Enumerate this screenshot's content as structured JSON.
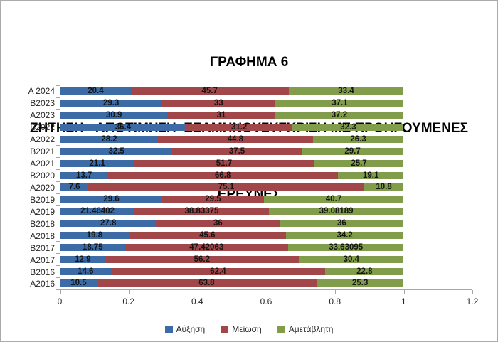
{
  "title": {
    "line1": "ΓΡΑΦΗΜΑ 6",
    "line2": "ΖΗΤΗΣΗ - ΑΠΟΤΙΜΗΣΗ  ΕΞΑΜΗΝΟΥΣΥΓΚΡΙΣΗ ΜΕ ΠΡΟΗΓΟΥΜΕΝΕΣ",
    "line3": "ΕΡΕΥΝΕΣ"
  },
  "chart_data": {
    "type": "bar",
    "orientation": "horizontal",
    "stacked": "100%",
    "title": "ΓΡΑΦΗΜΑ 6",
    "subtitle": "ΖΗΤΗΣΗ - ΑΠΟΤΙΜΗΣΗ  ΕΞΑΜΗΝΟΥΣΥΓΚΡΙΣΗ ΜΕ ΠΡΟΗΓΟΥΜΕΝΕΣ ΕΡΕΥΝΕΣ",
    "categories": [
      "A 2024",
      "B2023",
      "A2023",
      "B2022",
      "A2022",
      "B2021",
      "A2021",
      "B2020",
      "A2020",
      "B2019",
      "A2019",
      "B2018",
      "A2018",
      "B2017",
      "A2017",
      "B2016",
      "A2016"
    ],
    "series": [
      {
        "name": "Αύξηση",
        "color": "#3D6BA5",
        "values": [
          20.4,
          29.3,
          30.9,
          36.4,
          28.2,
          32.5,
          21.1,
          13.7,
          7.6,
          29.6,
          21.46402,
          27.8,
          19.8,
          18.75,
          12.9,
          14.6,
          10.5
        ]
      },
      {
        "name": "Μείωση",
        "color": "#A1474A",
        "values": [
          45.7,
          33,
          31,
          31.2,
          44.8,
          37.5,
          51.7,
          66.8,
          75.1,
          29.5,
          38.83375,
          36,
          45.6,
          47.42063,
          56.2,
          62.4,
          63.8
        ]
      },
      {
        "name": "Αμετάβλητη",
        "color": "#819C4B",
        "values": [
          33.4,
          37.1,
          37.2,
          32.3,
          26.3,
          29.7,
          25.7,
          19.1,
          10.8,
          40.7,
          39.08189,
          36,
          34.2,
          33.63095,
          30.4,
          22.8,
          25.3
        ]
      }
    ],
    "x_axis": {
      "min": 0,
      "max": 1.2,
      "tick_labels": [
        "0",
        "0.2",
        "0.4",
        "0.6",
        "0.8",
        "1",
        "1.2"
      ],
      "bar_extent": 1.0
    },
    "grid": false,
    "legend_position": "bottom",
    "value_labels": "inside-center"
  },
  "colors": {
    "axis": "#A6A6A6",
    "frame_border": "#ABABAB",
    "background": "#FFFFFF",
    "value_label": "#141414",
    "tick_label": "#262626"
  }
}
